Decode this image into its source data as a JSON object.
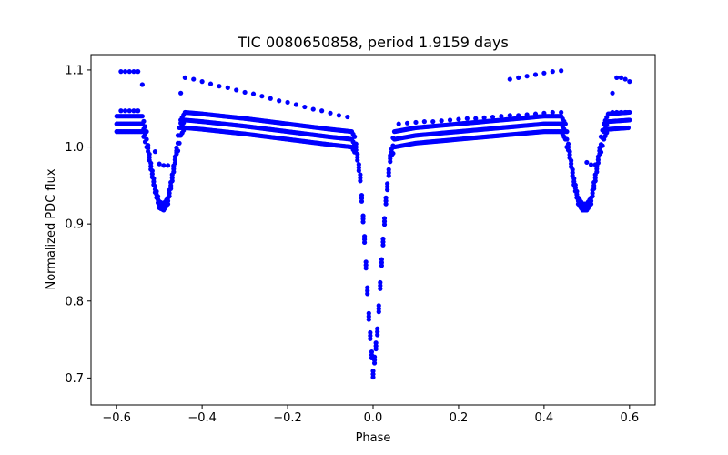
{
  "chart_data": {
    "type": "scatter",
    "title": "TIC 0080650858, period 1.9159 days",
    "xlabel": "Phase",
    "ylabel": "Normalized PDC flux",
    "xlim": [
      -0.66,
      0.66
    ],
    "ylim": [
      0.665,
      1.12
    ],
    "xticks": [
      -0.6,
      -0.4,
      -0.2,
      0.0,
      0.2,
      0.4,
      0.6
    ],
    "xtick_labels": [
      "−0.6",
      "−0.4",
      "−0.2",
      "0.0",
      "0.2",
      "0.4",
      "0.6"
    ],
    "yticks": [
      0.7,
      0.8,
      0.9,
      1.0,
      1.1
    ],
    "ytick_labels": [
      "0.7",
      "0.8",
      "0.9",
      "1.0",
      "1.1"
    ],
    "grid": false,
    "marker_color": "#0000ff",
    "main_band_halfwidth": 0.01,
    "main_curve": {
      "x": [
        -0.6,
        -0.54,
        -0.53,
        -0.52,
        -0.51,
        -0.5,
        -0.49,
        -0.48,
        -0.47,
        -0.46,
        -0.45,
        -0.44,
        -0.4,
        -0.3,
        -0.2,
        -0.1,
        -0.05,
        -0.04,
        -0.03,
        -0.02,
        -0.01,
        0.0,
        0.01,
        0.02,
        0.03,
        0.04,
        0.05,
        0.1,
        0.2,
        0.3,
        0.4,
        0.44,
        0.45,
        0.46,
        0.47,
        0.48,
        0.49,
        0.5,
        0.51,
        0.52,
        0.53,
        0.54,
        0.55,
        0.6
      ],
      "y": [
        1.03,
        1.03,
        1.01,
        0.975,
        0.945,
        0.925,
        0.922,
        0.93,
        0.96,
        0.995,
        1.025,
        1.035,
        1.033,
        1.027,
        1.02,
        1.013,
        1.01,
        1.0,
        0.96,
        0.88,
        0.78,
        0.705,
        0.76,
        0.85,
        0.93,
        0.985,
        1.01,
        1.015,
        1.02,
        1.025,
        1.03,
        1.03,
        1.02,
        0.99,
        0.955,
        0.93,
        0.922,
        0.922,
        0.93,
        0.96,
        0.995,
        1.02,
        1.033,
        1.035
      ]
    },
    "sparse_points": {
      "x": [
        -0.59,
        -0.58,
        -0.57,
        -0.56,
        -0.55,
        -0.54,
        -0.45,
        -0.44,
        -0.42,
        -0.4,
        -0.38,
        -0.36,
        -0.34,
        -0.32,
        -0.3,
        -0.28,
        -0.26,
        -0.24,
        -0.22,
        -0.2,
        -0.18,
        -0.16,
        -0.14,
        -0.12,
        -0.1,
        -0.08,
        -0.06,
        0.32,
        0.34,
        0.36,
        0.38,
        0.4,
        0.42,
        0.44,
        0.56,
        0.57,
        0.58,
        0.59,
        0.6,
        -0.59,
        -0.58,
        -0.57,
        -0.56,
        -0.55,
        -0.51,
        -0.5,
        -0.49,
        -0.48,
        -0.46,
        -0.45,
        0.06,
        0.08,
        0.1,
        0.12,
        0.14,
        0.16,
        0.18,
        0.2,
        0.22,
        0.24,
        0.26,
        0.28,
        0.3,
        0.32,
        0.34,
        0.36,
        0.38,
        0.4,
        0.42,
        0.44,
        0.5,
        0.51,
        0.52,
        0.53,
        0.56,
        0.57,
        0.58,
        0.59,
        0.6
      ],
      "y": [
        1.098,
        1.098,
        1.098,
        1.098,
        1.098,
        1.081,
        1.07,
        1.09,
        1.088,
        1.085,
        1.082,
        1.079,
        1.077,
        1.074,
        1.071,
        1.069,
        1.066,
        1.063,
        1.06,
        1.058,
        1.055,
        1.052,
        1.049,
        1.047,
        1.044,
        1.041,
        1.039,
        1.088,
        1.09,
        1.092,
        1.094,
        1.096,
        1.098,
        1.099,
        1.07,
        1.09,
        1.09,
        1.088,
        1.085,
        1.047,
        1.047,
        1.047,
        1.047,
        1.047,
        0.994,
        0.978,
        0.976,
        0.976,
        0.993,
        1.031,
        1.03,
        1.031,
        1.032,
        1.033,
        1.033,
        1.034,
        1.035,
        1.036,
        1.037,
        1.037,
        1.038,
        1.039,
        1.04,
        1.041,
        1.041,
        1.042,
        1.043,
        1.044,
        1.045,
        1.045,
        0.98,
        0.977,
        0.977,
        0.995,
        1.045,
        1.045,
        1.045,
        1.045,
        1.045
      ]
    }
  }
}
